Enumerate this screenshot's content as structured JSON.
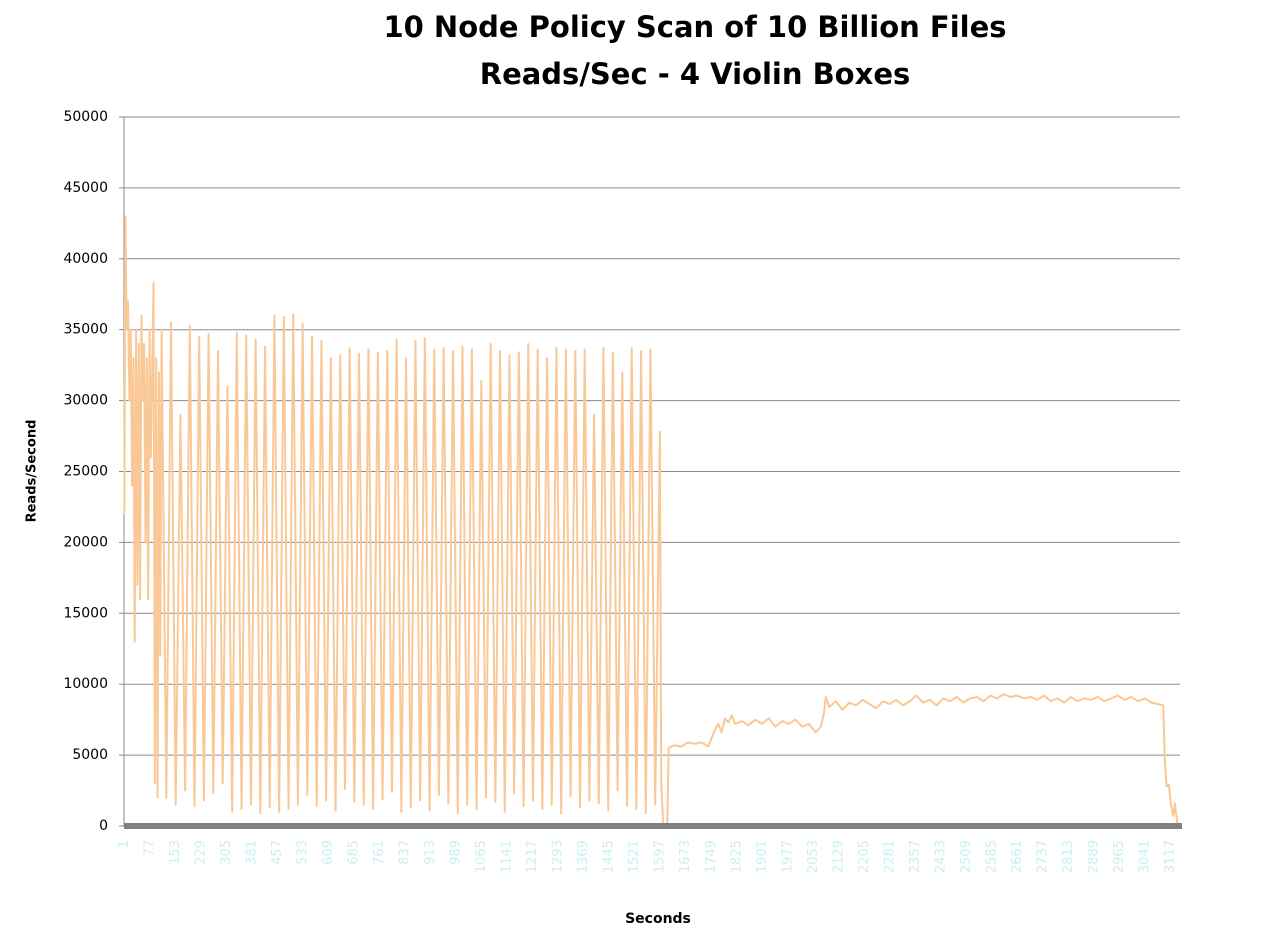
{
  "chart_data": {
    "type": "line",
    "title": "10 Node Policy Scan of 10 Billion Files",
    "subtitle": "Reads/Sec - 4 Violin Boxes",
    "x_label": "Seconds",
    "y_label": "Reads/Second",
    "color": "#fac896",
    "grid": true,
    "xlim": [
      0,
      3145
    ],
    "ylim": [
      0,
      50000
    ],
    "yticks": [
      0,
      5000,
      10000,
      15000,
      20000,
      25000,
      30000,
      35000,
      40000,
      45000,
      50000
    ],
    "xticks": [
      1,
      77,
      153,
      229,
      305,
      381,
      457,
      533,
      609,
      685,
      761,
      837,
      913,
      989,
      1065,
      1141,
      1217,
      1293,
      1369,
      1445,
      1521,
      1597,
      1673,
      1749,
      1825,
      1901,
      1977,
      2053,
      2129,
      2205,
      2281,
      2357,
      2433,
      2509,
      2585,
      2661,
      2737,
      2813,
      2889,
      2965,
      3041,
      3117
    ],
    "x": [
      1,
      4,
      8,
      12,
      16,
      20,
      24,
      28,
      32,
      36,
      40,
      44,
      48,
      52,
      56,
      60,
      64,
      68,
      72,
      76,
      80,
      84,
      88,
      92,
      96,
      100,
      104,
      108,
      112,
      126,
      140,
      154,
      168,
      182,
      196,
      210,
      224,
      238,
      252,
      266,
      280,
      294,
      308,
      322,
      336,
      350,
      364,
      378,
      392,
      406,
      420,
      434,
      448,
      462,
      476,
      490,
      504,
      518,
      532,
      546,
      560,
      574,
      588,
      602,
      616,
      630,
      644,
      658,
      672,
      686,
      700,
      714,
      728,
      742,
      756,
      770,
      784,
      798,
      812,
      826,
      840,
      854,
      868,
      882,
      896,
      910,
      924,
      938,
      952,
      966,
      980,
      994,
      1008,
      1022,
      1036,
      1050,
      1064,
      1078,
      1092,
      1106,
      1120,
      1134,
      1148,
      1162,
      1176,
      1190,
      1204,
      1218,
      1232,
      1246,
      1260,
      1274,
      1288,
      1302,
      1316,
      1330,
      1344,
      1358,
      1372,
      1386,
      1400,
      1414,
      1428,
      1442,
      1456,
      1470,
      1484,
      1498,
      1512,
      1526,
      1540,
      1554,
      1568,
      1582,
      1596,
      1600,
      1606,
      1618,
      1622,
      1640,
      1660,
      1680,
      1700,
      1720,
      1740,
      1750,
      1760,
      1770,
      1780,
      1790,
      1800,
      1810,
      1820,
      1840,
      1860,
      1880,
      1900,
      1920,
      1940,
      1960,
      1980,
      2000,
      2020,
      2040,
      2060,
      2075,
      2085,
      2090,
      2100,
      2120,
      2140,
      2160,
      2180,
      2200,
      2220,
      2240,
      2260,
      2280,
      2300,
      2320,
      2340,
      2360,
      2380,
      2400,
      2420,
      2440,
      2460,
      2480,
      2500,
      2520,
      2540,
      2560,
      2580,
      2600,
      2620,
      2640,
      2660,
      2680,
      2700,
      2720,
      2740,
      2760,
      2780,
      2800,
      2820,
      2840,
      2860,
      2880,
      2900,
      2920,
      2940,
      2960,
      2980,
      3000,
      3020,
      3040,
      3060,
      3080,
      3095,
      3100,
      3105,
      3112,
      3118,
      3125,
      3130,
      3138
    ],
    "values": [
      22000,
      43000,
      35000,
      37000,
      30000,
      35000,
      24000,
      33000,
      13000,
      35000,
      17000,
      34000,
      16000,
      36000,
      30000,
      34000,
      20000,
      33000,
      16000,
      35000,
      26000,
      32000,
      38300,
      3000,
      33000,
      2000,
      32000,
      12000,
      35000,
      2000,
      35500,
      1500,
      29000,
      2500,
      35300,
      1400,
      34500,
      1800,
      34700,
      2300,
      33500,
      3000,
      31000,
      1000,
      34800,
      1200,
      34600,
      1500,
      34300,
      900,
      33800,
      1300,
      36000,
      1000,
      35900,
      1200,
      36100,
      1500,
      35400,
      2200,
      34500,
      1400,
      34200,
      1800,
      33000,
      1100,
      33200,
      2600,
      33700,
      1700,
      33300,
      1500,
      33600,
      1200,
      33400,
      1900,
      33500,
      2400,
      34300,
      1000,
      33000,
      1300,
      34200,
      1800,
      34400,
      1100,
      33600,
      2200,
      33700,
      1600,
      33500,
      900,
      33800,
      1500,
      33600,
      1200,
      31400,
      2000,
      34000,
      1700,
      33500,
      1000,
      33200,
      2300,
      33400,
      1400,
      34000,
      1800,
      33600,
      1200,
      33000,
      1500,
      33700,
      900,
      33600,
      2100,
      33500,
      1300,
      33600,
      1800,
      29000,
      1600,
      33700,
      1100,
      33400,
      2500,
      32000,
      1400,
      33700,
      1200,
      33500,
      900,
      33600,
      1500,
      27800,
      3000,
      0,
      0,
      5500,
      5700,
      5600,
      5900,
      5800,
      5900,
      5600,
      6200,
      6800,
      7200,
      6600,
      7600,
      7300,
      7800,
      7200,
      7400,
      7100,
      7500,
      7200,
      7600,
      7000,
      7400,
      7200,
      7500,
      7000,
      7200,
      6600,
      7000,
      8000,
      9100,
      8400,
      8800,
      8200,
      8700,
      8500,
      8900,
      8600,
      8300,
      8800,
      8600,
      8900,
      8500,
      8800,
      9200,
      8700,
      8900,
      8500,
      9000,
      8800,
      9100,
      8700,
      9000,
      9100,
      8800,
      9200,
      9000,
      9300,
      9100,
      9200,
      9000,
      9100,
      8900,
      9200,
      8800,
      9000,
      8700,
      9100,
      8800,
      9000,
      8900,
      9100,
      8800,
      9000,
      9200,
      8900,
      9100,
      8800,
      9000,
      8700,
      8600,
      8500,
      4500,
      2800,
      2900,
      1500,
      700,
      1600,
      0
    ]
  }
}
